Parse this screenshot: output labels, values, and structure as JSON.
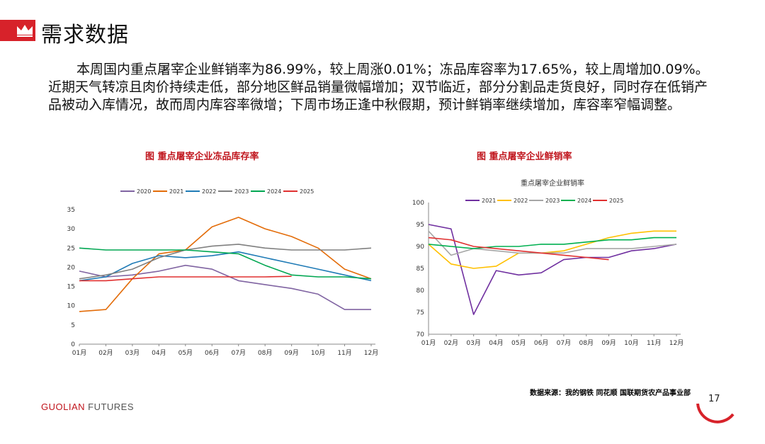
{
  "header": {
    "title": "需求数据"
  },
  "summary": "本周国内重点屠宰企业鲜销率为86.99%，较上周涨0.01%；冻品库容率为17.65%，较上周增加0.09%。近期天气转凉且肉价持续走低，部分地区鲜品销量微幅增加；双节临近，部分分割品走货良好，同时存在低销产品被动入库情况，故而周内库容率微增；下周市场正逢中秋假期，预计鲜销率继续增加，库容率窄幅调整。",
  "footer": {
    "source": "数据来源：我的钢铁 同花顺 国联期货农产品事业部",
    "brand_main": "GUOLIAN",
    "brand_sub": " FUTURES",
    "page_number": "17"
  },
  "chart_data": [
    {
      "type": "line",
      "title": "图  重点屠宰企业冻品库存率",
      "x": [
        "01月",
        "02月",
        "03月",
        "04月",
        "05月",
        "06月",
        "07月",
        "08月",
        "09月",
        "10月",
        "11月",
        "12月"
      ],
      "ylim": [
        0,
        35
      ],
      "yticks": [
        0,
        5,
        10,
        15,
        20,
        25,
        30,
        35
      ],
      "legend_position": "top",
      "series": [
        {
          "name": "2020",
          "color": "#8064a2",
          "values": [
            19,
            17.5,
            18,
            19,
            20.5,
            19.5,
            16.5,
            15.5,
            14.5,
            13,
            9,
            9
          ]
        },
        {
          "name": "2021",
          "color": "#e36c09",
          "values": [
            8.5,
            9,
            17,
            23.5,
            24.5,
            30.5,
            33,
            30,
            28,
            25,
            19.5,
            17
          ]
        },
        {
          "name": "2022",
          "color": "#1f7bb6",
          "values": [
            16.5,
            17.5,
            21,
            23,
            22.5,
            23,
            24,
            22.5,
            21,
            19.5,
            18,
            16.5
          ]
        },
        {
          "name": "2023",
          "color": "#808080",
          "values": [
            17,
            18,
            19.5,
            22.5,
            24.5,
            25.5,
            26,
            25,
            24.5,
            24.5,
            24.5,
            25
          ]
        },
        {
          "name": "2024",
          "color": "#00a651",
          "values": [
            25,
            24.5,
            24.5,
            24.5,
            24.5,
            24,
            23.5,
            20.5,
            18,
            17.5,
            17.5,
            17
          ]
        },
        {
          "name": "2025",
          "color": "#e03030",
          "values": [
            16.5,
            16.5,
            17,
            17.5,
            17.5,
            17.5,
            17.5,
            17.5,
            17.65,
            null,
            null,
            null
          ]
        }
      ]
    },
    {
      "type": "line",
      "title": "图    重点屠宰企业鲜销率",
      "subtitle": "重点屠宰企业鲜销率",
      "x": [
        "01月",
        "02月",
        "03月",
        "04月",
        "05月",
        "06月",
        "07月",
        "08月",
        "09月",
        "10月",
        "11月",
        "12月"
      ],
      "ylim": [
        70,
        100
      ],
      "yticks": [
        70,
        75,
        80,
        85,
        90,
        95,
        100
      ],
      "legend_position": "top",
      "series": [
        {
          "name": "2021",
          "color": "#7030a0",
          "values": [
            95,
            94,
            74.5,
            84.5,
            83.5,
            84,
            87,
            87.5,
            87.5,
            89,
            89.5,
            90.5
          ]
        },
        {
          "name": "2022",
          "color": "#ffc000",
          "values": [
            90.5,
            86,
            85,
            85.5,
            88.5,
            88.5,
            89,
            90.5,
            92,
            93,
            93.5,
            93.5
          ]
        },
        {
          "name": "2023",
          "color": "#a6a6a6",
          "values": [
            93.5,
            88,
            89.5,
            89,
            88.5,
            88.5,
            88.5,
            89.5,
            89.5,
            89.5,
            90,
            90.5
          ]
        },
        {
          "name": "2024",
          "color": "#00b050",
          "values": [
            90.5,
            90,
            89.5,
            90,
            90,
            90.5,
            90.5,
            91,
            91.5,
            91.5,
            92,
            92
          ]
        },
        {
          "name": "2025",
          "color": "#e03030",
          "values": [
            92,
            91.5,
            90,
            89.5,
            89,
            88.5,
            88,
            87.5,
            86.99,
            null,
            null,
            null
          ]
        }
      ]
    }
  ]
}
